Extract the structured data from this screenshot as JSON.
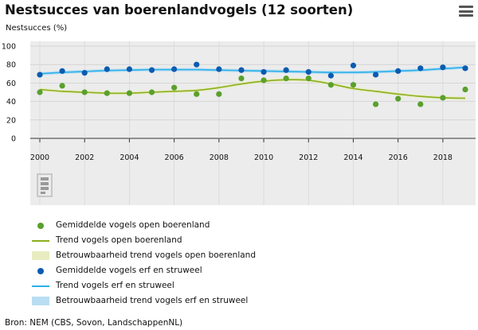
{
  "title": "Nestsucces van boerenlandvogels (12 soorten)",
  "y_axis_label": "Nestsucces (%)",
  "source": "Bron: NEM (CBS, Sovon, LandschappenNL)",
  "menu_icon": "hamburger-menu-icon",
  "logo_icon": "cbs-logo-icon",
  "colors": {
    "open_dots": "#5aa02c",
    "open_trend": "#8aaf1e",
    "open_band": "#e8ecc0",
    "erf_dots": "#0b5bb0",
    "erf_trend": "#2ab0e8",
    "erf_band": "#b9ddf2"
  },
  "legend": [
    {
      "label": "Gemiddelde vogels open boerenland",
      "symbol": "dot",
      "color": "#5aa02c"
    },
    {
      "label": "Trend vogels open boerenland",
      "symbol": "line",
      "color": "#8aaf1e"
    },
    {
      "label": "Betrouwbaarheid trend vogels open boerenland",
      "symbol": "band",
      "color": "#e8ecc0"
    },
    {
      "label": "Gemiddelde vogels erf en struweel",
      "symbol": "dot",
      "color": "#0b5bb0"
    },
    {
      "label": "Trend vogels erf en struweel",
      "symbol": "line",
      "color": "#2ab0e8"
    },
    {
      "label": "Betrouwbaarheid trend vogels erf en struweel",
      "symbol": "band",
      "color": "#b9ddf2"
    }
  ],
  "chart_data": {
    "type": "line",
    "x": [
      2000,
      2001,
      2002,
      2003,
      2004,
      2005,
      2006,
      2007,
      2008,
      2009,
      2010,
      2011,
      2012,
      2013,
      2014,
      2015,
      2016,
      2017,
      2018,
      2019
    ],
    "x_ticks": [
      "2000",
      "2002",
      "2004",
      "2006",
      "2008",
      "2010",
      "2012",
      "2014",
      "2016",
      "2018"
    ],
    "y_ticks": [
      "0",
      "20",
      "40",
      "60",
      "80",
      "100"
    ],
    "ylim": [
      0,
      100
    ],
    "xlim": [
      2000,
      2019
    ],
    "grid": true,
    "legend_position": "bottom",
    "series": [
      {
        "name": "Gemiddelde vogels open boerenland",
        "kind": "points",
        "values": [
          50,
          57,
          null,
          null,
          null,
          null,
          55,
          48,
          48,
          65,
          63,
          65,
          65,
          58,
          58,
          37,
          43,
          37,
          44,
          53
        ]
      },
      {
        "name": "Trend vogels open boerenland",
        "kind": "trend",
        "values": [
          53,
          51,
          50,
          49,
          49,
          50,
          51,
          52,
          55,
          59,
          62,
          63.5,
          63,
          59,
          54,
          51,
          48,
          45.5,
          44,
          43.5
        ]
      },
      {
        "name": "Gemiddelde vogels erf en struweel",
        "kind": "points",
        "values": [
          69,
          73,
          71,
          75,
          75,
          74,
          75,
          80,
          75,
          74,
          72,
          74,
          72,
          68,
          79,
          69,
          73,
          76,
          77,
          76
        ]
      },
      {
        "name": "Trend vogels erf en struweel",
        "kind": "trend",
        "values": [
          70,
          71.5,
          72.5,
          73.5,
          74,
          74.5,
          74.5,
          74.5,
          74,
          73.5,
          73,
          72.5,
          72,
          71.5,
          71.5,
          72,
          73,
          74,
          75.5,
          77
        ]
      }
    ],
    "extra_points_open": [
      [
        2002,
        50
      ],
      [
        2003,
        49
      ],
      [
        2004,
        49
      ],
      [
        2005,
        50
      ]
    ]
  }
}
